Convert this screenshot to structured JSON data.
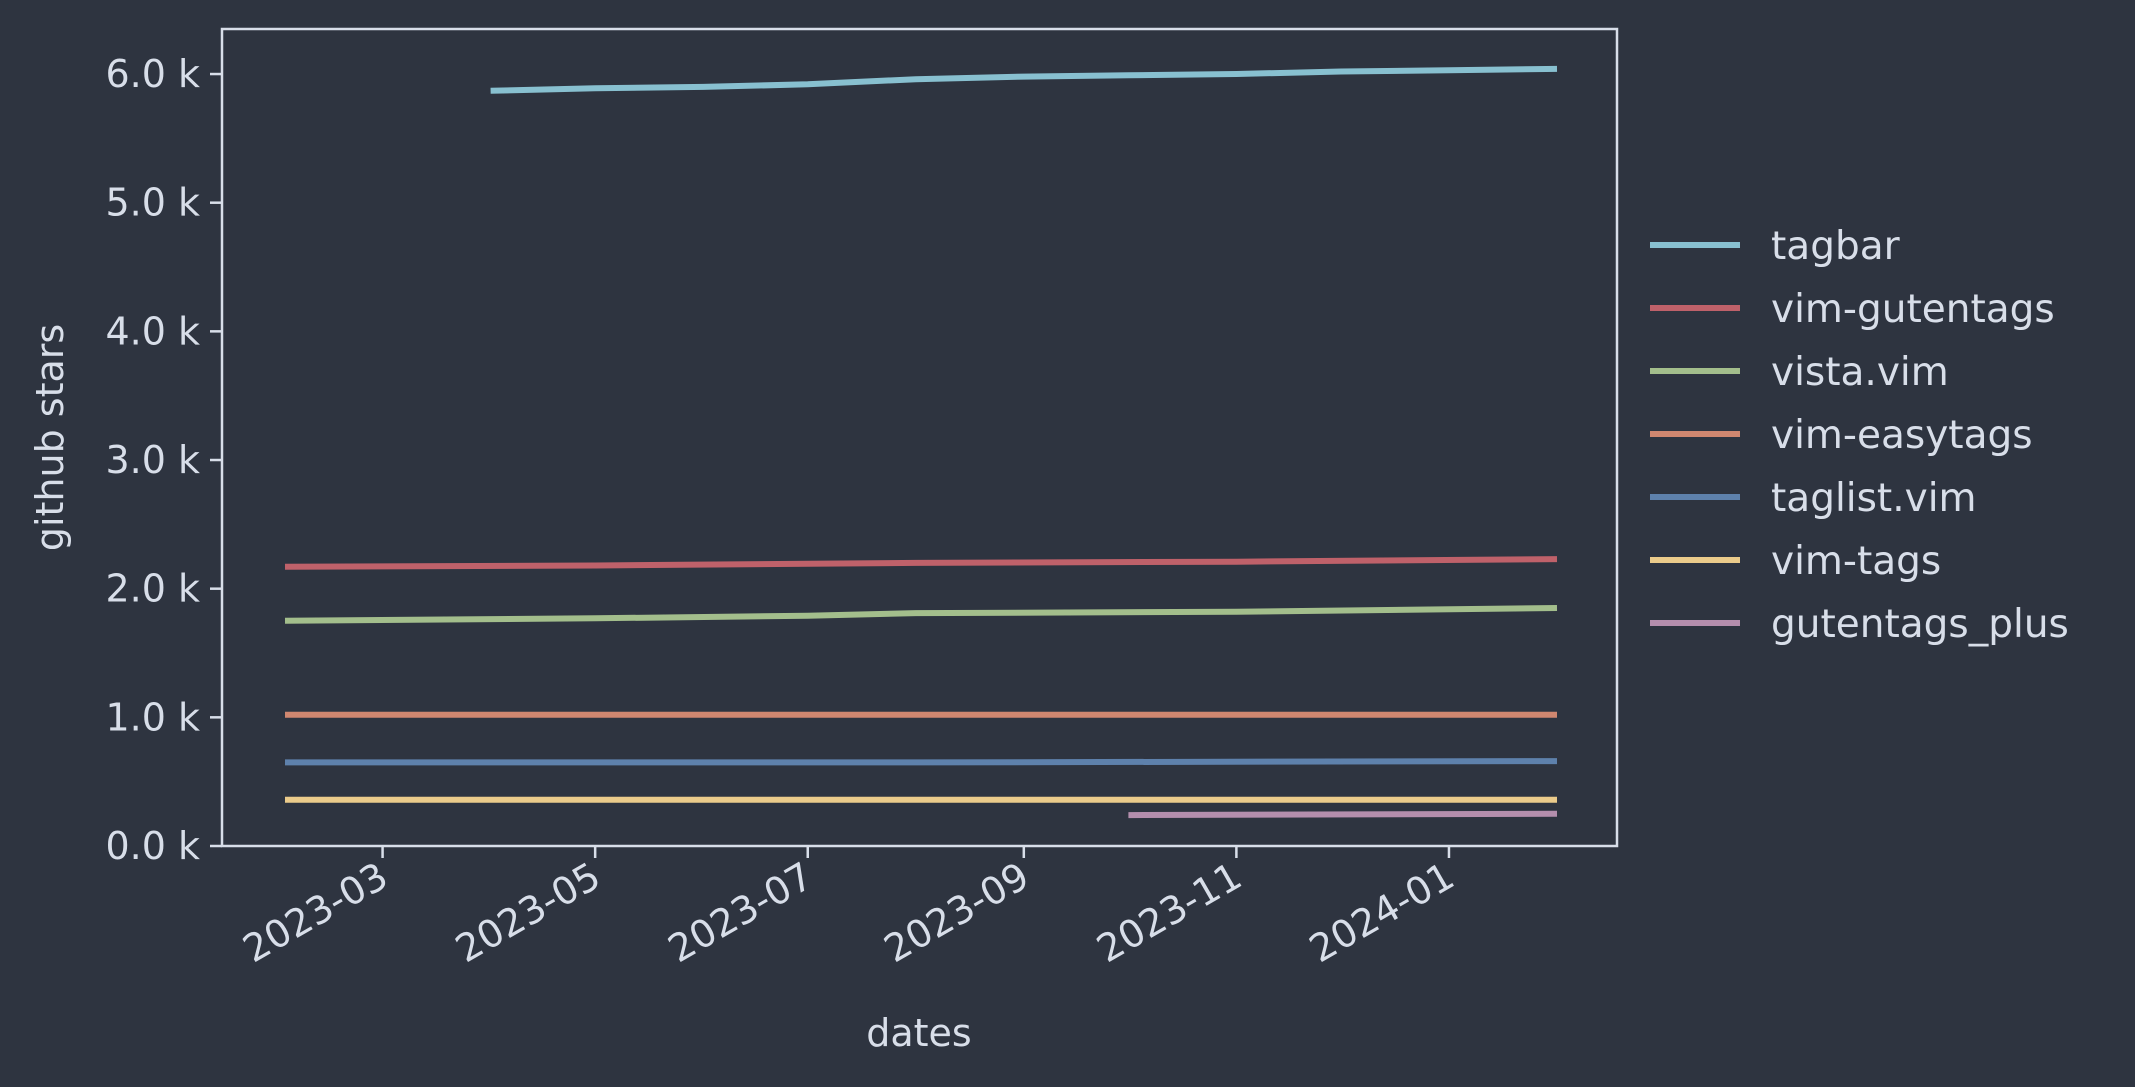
{
  "chart_data": {
    "type": "line",
    "title": "",
    "xlabel": "dates",
    "ylabel": "github stars",
    "xlim": [
      "2023-02-01",
      "2024-02-01"
    ],
    "ylim": [
      0,
      6.35
    ],
    "x_ticks": [
      "2023-03",
      "2023-05",
      "2023-07",
      "2023-09",
      "2023-11",
      "2024-01"
    ],
    "y_ticks": [
      "0.0 k",
      "1.0 k",
      "2.0 k",
      "3.0 k",
      "4.0 k",
      "5.0 k",
      "6.0 k"
    ],
    "y_unit": "k",
    "grid": false,
    "legend_position": "right",
    "series": [
      {
        "name": "tagbar",
        "color": "#88c0d0",
        "x": [
          "2023-04-01",
          "2023-05-01",
          "2023-06-01",
          "2023-07-01",
          "2023-08-01",
          "2023-09-01",
          "2023-10-01",
          "2023-11-01",
          "2023-12-01",
          "2024-01-01",
          "2024-02-01"
        ],
        "y": [
          5.87,
          5.89,
          5.9,
          5.92,
          5.96,
          5.98,
          5.99,
          6.0,
          6.02,
          6.03,
          6.04
        ]
      },
      {
        "name": "vim-gutentags",
        "color": "#bf616a",
        "x": [
          "2023-02-01",
          "2023-05-01",
          "2023-08-01",
          "2023-11-01",
          "2024-02-01"
        ],
        "y": [
          2.17,
          2.18,
          2.2,
          2.21,
          2.23
        ]
      },
      {
        "name": "vista.vim",
        "color": "#a3be8c",
        "x": [
          "2023-02-01",
          "2023-05-01",
          "2023-07-01",
          "2023-08-01",
          "2023-11-01",
          "2024-02-01"
        ],
        "y": [
          1.75,
          1.77,
          1.79,
          1.81,
          1.82,
          1.85
        ]
      },
      {
        "name": "vim-easytags",
        "color": "#d08770",
        "x": [
          "2023-02-01",
          "2024-02-01"
        ],
        "y": [
          1.02,
          1.02
        ]
      },
      {
        "name": "taglist.vim",
        "color": "#5e81ac",
        "x": [
          "2023-02-01",
          "2023-08-01",
          "2024-02-01"
        ],
        "y": [
          0.65,
          0.65,
          0.66
        ]
      },
      {
        "name": "vim-tags",
        "color": "#ebcb8b",
        "x": [
          "2023-02-01",
          "2024-02-01"
        ],
        "y": [
          0.36,
          0.36
        ]
      },
      {
        "name": "gutentags_plus",
        "color": "#b48ead",
        "x": [
          "2023-10-01",
          "2024-02-01"
        ],
        "y": [
          0.24,
          0.25
        ]
      }
    ]
  }
}
